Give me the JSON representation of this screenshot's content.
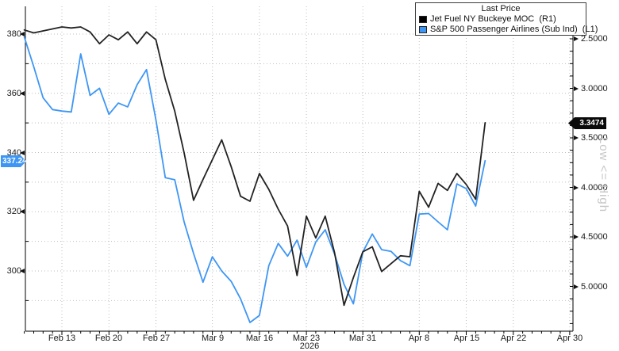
{
  "colors": {
    "black_series": "#222222",
    "blue_series": "#3E96F4",
    "grid": "#bfbfbf",
    "axis": "#000000",
    "watermark": "#c6c6c6"
  },
  "legend": {
    "title": "Last Price",
    "entries": [
      {
        "label": "Jet Fuel NY Buckeye MOC  (R1)",
        "color": "#000000"
      },
      {
        "label": "S&P 500 Passenger Airlines (Sub Ind)  (L1)",
        "color": "#3E96F4"
      }
    ]
  },
  "left_axis": {
    "badge": {
      "value": "337.24",
      "color": "#3E96F4"
    }
  },
  "right_axis": {
    "badge": {
      "value": "3.3474",
      "color": "#0a0a0a"
    },
    "watermark": "Low <= High"
  },
  "x_axis": {
    "year": "2026"
  },
  "chart_data": {
    "type": "line",
    "title": "Last Price",
    "x": [
      "Feb 9",
      "Feb 10",
      "Feb 11",
      "Feb 12",
      "Feb 13",
      "Feb 16",
      "Feb 17",
      "Feb 18",
      "Feb 19",
      "Feb 20",
      "Feb 23",
      "Feb 24",
      "Feb 25",
      "Feb 26",
      "Feb 27",
      "Mar 2",
      "Mar 3",
      "Mar 4",
      "Mar 5",
      "Mar 6",
      "Mar 9",
      "Mar 10",
      "Mar 11",
      "Mar 12",
      "Mar 13",
      "Mar 16",
      "Mar 17",
      "Mar 18",
      "Mar 19",
      "Mar 20",
      "Mar 23",
      "Mar 24",
      "Mar 25",
      "Mar 26",
      "Mar 27",
      "Mar 30",
      "Mar 31",
      "Apr 1",
      "Apr 2",
      "Apr 3",
      "Apr 6",
      "Apr 7",
      "Apr 8",
      "Apr 9",
      "Apr 10",
      "Apr 13",
      "Apr 14",
      "Apr 15",
      "Apr 16",
      "Apr 17"
    ],
    "series": [
      {
        "name": "Jet Fuel NY Buckeye MOC",
        "axis": "R1",
        "color": "#222222",
        "last": 3.3474,
        "values": [
          2.41,
          2.44,
          2.42,
          2.4,
          2.38,
          2.39,
          2.38,
          2.43,
          2.55,
          2.46,
          2.51,
          2.43,
          2.55,
          2.43,
          2.51,
          2.91,
          3.23,
          3.65,
          4.13,
          3.92,
          3.72,
          3.52,
          3.79,
          4.09,
          4.14,
          3.86,
          4.02,
          4.22,
          4.39,
          4.89,
          4.29,
          4.51,
          4.29,
          4.66,
          5.19,
          4.91,
          4.65,
          4.6,
          4.85,
          4.77,
          4.69,
          4.7,
          4.04,
          4.2,
          3.96,
          4.03,
          3.86,
          3.97,
          4.12,
          3.3474
        ]
      },
      {
        "name": "S&P 500 Passenger Airlines (Sub Ind)",
        "axis": "L1",
        "color": "#3E96F4",
        "last": 337.24,
        "values": [
          379.0,
          369.0,
          358.5,
          354.5,
          354.0,
          353.7,
          373.3,
          359.3,
          361.7,
          352.9,
          356.7,
          355.4,
          362.9,
          368.0,
          351.0,
          331.5,
          330.8,
          316.6,
          305.9,
          296.2,
          304.8,
          300.0,
          296.5,
          290.6,
          282.6,
          285.0,
          301.8,
          309.3,
          305.0,
          310.4,
          301.2,
          309.8,
          313.9,
          305.7,
          295.5,
          288.9,
          306.4,
          312.5,
          307.2,
          306.6,
          303.5,
          301.8,
          319.2,
          319.4,
          316.6,
          313.9,
          329.4,
          327.8,
          321.9,
          337.24
        ]
      }
    ],
    "left_axis_ticks": [
      380,
      360,
      340,
      320,
      300
    ],
    "left_axis_tick_labels": [
      "380",
      "360",
      "340",
      "320",
      "300"
    ],
    "right_axis_ticks": [
      2.5,
      3.0,
      3.5,
      4.0,
      4.5,
      5.0
    ],
    "right_axis_tick_labels": [
      "2.5000",
      "3.0000",
      "3.5000",
      "4.0000",
      "4.5000",
      "5.0000"
    ],
    "right_axis_inverted": true,
    "x_tick_labels": [
      "Feb 13",
      "Feb 20",
      "Feb 27",
      "Mar 9",
      "Mar 16",
      "Mar 23",
      "Mar 31",
      "Apr 8",
      "Apr 15",
      "Apr 22",
      "Apr 30"
    ],
    "x_tick_day_index": [
      4,
      9,
      14,
      20,
      25,
      30,
      36,
      42,
      47,
      52,
      58
    ],
    "x_total_days": 59,
    "year": "2026",
    "grid": "dotted",
    "legend_position": "top-right"
  }
}
